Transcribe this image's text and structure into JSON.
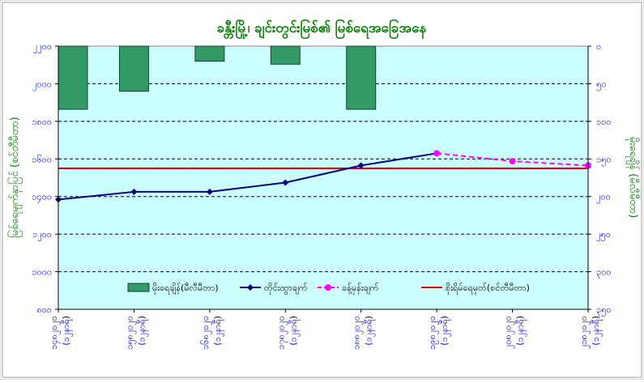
{
  "chart_data": {
    "type": "combo",
    "title": "ခန္တီးမြို့၊ ချင်းတွင်းမြစ်၏ မြစ်ရေအခြေအနေ",
    "categories": [
      "၁၄၈၂၀၂၀ (၁၂နာရီ)",
      "၁၅၈၂၀၂၀ (၁၂နာရီ)",
      "၁၆၈၂၀၂၀ (၁၂နာရီ)",
      "၁၇၈၂၀၂၀ (၁၂နာရီ)",
      "၁၈၈၂၀၂၀ (၁၂နာရီ)",
      "၁၉၈၂၀၂၀ (၁၂နာရီ)",
      "၂၀၈၂၀၂၀ (၁၂နာရီ)",
      "၂၁၈၂၀၂၀ (၁၂နာရီ)"
    ],
    "y_left": {
      "label": "မြစ်ရေမျက်နှာပြင် (စင်တီမီတာ)",
      "range": [
        800,
        2200
      ],
      "ticks": [
        {
          "value": 800,
          "label": "၈၀၀"
        },
        {
          "value": 1000,
          "label": "၁၀၀၀"
        },
        {
          "value": 1200,
          "label": "၁၂၀၀"
        },
        {
          "value": 1400,
          "label": "၁၄၀၀"
        },
        {
          "value": 1600,
          "label": "၁၆၀၀"
        },
        {
          "value": 1800,
          "label": "၁၈၀၀"
        },
        {
          "value": 2000,
          "label": "၂၀၀၀"
        },
        {
          "value": 2200,
          "label": "၂၂၀၀"
        }
      ]
    },
    "y_right": {
      "label": "မိုးရေချိန် (မီလီမီတာ)",
      "range": [
        0,
        350
      ],
      "reversed": true,
      "ticks": [
        {
          "value": 0,
          "label": "၀"
        },
        {
          "value": 50,
          "label": "၅၀"
        },
        {
          "value": 100,
          "label": "၁၀၀"
        },
        {
          "value": 150,
          "label": "၁၅၀"
        },
        {
          "value": 200,
          "label": "၂၀၀"
        },
        {
          "value": 250,
          "label": "၂၅၀"
        },
        {
          "value": 300,
          "label": "၃၀၀"
        },
        {
          "value": 350,
          "label": "၃၅၀"
        }
      ]
    },
    "series": [
      {
        "name": "မိုးရေချိန်(မီလီမီတာ)",
        "kind": "bar",
        "axis": "right",
        "color": "#339966",
        "values": [
          84,
          60,
          20,
          24,
          84,
          null,
          null,
          null
        ]
      },
      {
        "name": "တိုင်းထွာချက်",
        "kind": "line",
        "axis": "left",
        "color": "#000080",
        "values": [
          1384,
          1425,
          1425,
          1474,
          1565,
          1630,
          null,
          null
        ]
      },
      {
        "name": "ခန့်မှန်းချက်",
        "kind": "line-dashed",
        "axis": "left",
        "color": "#FF00FF",
        "values": [
          null,
          null,
          null,
          null,
          null,
          1630,
          1588,
          1565
        ]
      },
      {
        "name": "စိုးရိမ်ရေမှတ်(စင်တီမီတာ)",
        "kind": "hline",
        "axis": "left",
        "color": "#CC0000",
        "value": 1550
      }
    ],
    "grid": true,
    "legend": "bottom",
    "colors": {
      "plot_bg": "#CCFFFF",
      "text": "#008000",
      "tick": "#0000CC",
      "bar": "#339966",
      "measured": "#000080",
      "forecast": "#FF00FF",
      "danger": "#CC0000"
    }
  }
}
